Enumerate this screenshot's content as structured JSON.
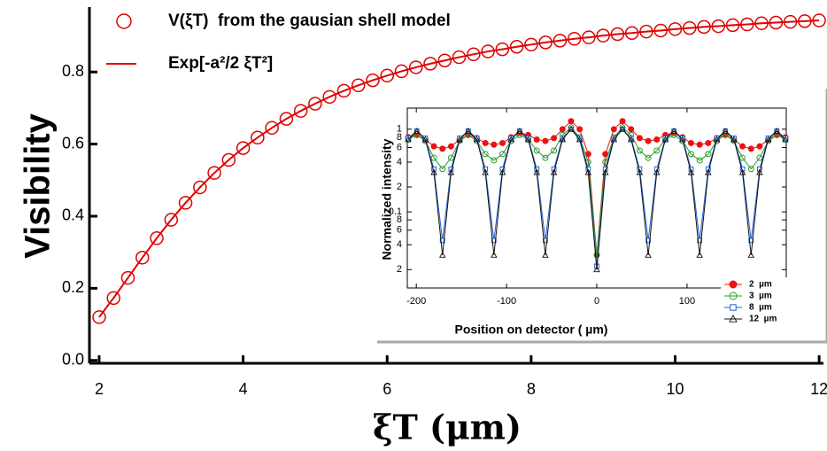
{
  "chart_data": [
    {
      "type": "line",
      "xlabel": "ξT (μm)",
      "ylabel": "Visibility",
      "x": [
        2,
        2.2,
        2.4,
        2.6,
        2.8,
        3,
        3.2,
        3.4,
        3.6,
        3.8,
        4,
        4.2,
        4.4,
        4.6,
        4.8,
        5,
        5.2,
        5.4,
        5.6,
        5.8,
        6,
        6.2,
        6.4,
        6.6,
        6.8,
        7,
        7.2,
        7.4,
        7.6,
        7.8,
        8,
        8.2,
        8.4,
        8.6,
        8.8,
        9,
        9.2,
        9.4,
        9.6,
        9.8,
        10,
        10.2,
        10.4,
        10.6,
        10.8,
        11,
        11.2,
        11.4,
        11.6,
        11.8,
        12
      ],
      "series": [
        {
          "name": "V(ξT)  from the gausian shell model",
          "color": "#e00000",
          "marker": "circle-open",
          "line": false,
          "values": [
            0.12,
            0.173,
            0.229,
            0.285,
            0.339,
            0.39,
            0.437,
            0.48,
            0.52,
            0.556,
            0.589,
            0.618,
            0.645,
            0.67,
            0.692,
            0.712,
            0.731,
            0.748,
            0.763,
            0.777,
            0.79,
            0.802,
            0.813,
            0.823,
            0.832,
            0.841,
            0.849,
            0.857,
            0.863,
            0.87,
            0.876,
            0.882,
            0.887,
            0.892,
            0.896,
            0.901,
            0.905,
            0.908,
            0.912,
            0.915,
            0.919,
            0.922,
            0.925,
            0.927,
            0.93,
            0.932,
            0.935,
            0.937,
            0.939,
            0.941,
            0.943
          ]
        },
        {
          "name": "Exp[-a²/2 ξT²]",
          "color": "#e00000",
          "marker": "none",
          "line": true,
          "values": [
            0.12,
            0.173,
            0.229,
            0.285,
            0.339,
            0.39,
            0.437,
            0.48,
            0.52,
            0.556,
            0.589,
            0.618,
            0.645,
            0.67,
            0.692,
            0.712,
            0.731,
            0.748,
            0.763,
            0.777,
            0.79,
            0.802,
            0.813,
            0.823,
            0.832,
            0.841,
            0.849,
            0.857,
            0.863,
            0.87,
            0.876,
            0.882,
            0.887,
            0.892,
            0.896,
            0.901,
            0.905,
            0.908,
            0.912,
            0.915,
            0.919,
            0.922,
            0.925,
            0.927,
            0.93,
            0.932,
            0.935,
            0.937,
            0.939,
            0.941,
            0.943
          ]
        }
      ],
      "xlim": [
        1.865,
        12.06
      ],
      "xticks": [
        2,
        4,
        6,
        8,
        10,
        12
      ],
      "ylim": [
        -0.008,
        0.98
      ],
      "yticks": [
        {
          "value": 0,
          "label": "0.0"
        },
        0.2,
        0.4,
        0.6,
        0.8
      ],
      "log_y": false,
      "legend": "top-left"
    },
    {
      "type": "line",
      "xlabel": "Position on detector ( µm)",
      "ylabel": "Normalized intensity",
      "x": [
        -209,
        -199.5,
        -190,
        -180.5,
        -171,
        -161.5,
        -152,
        -142.5,
        -133,
        -123.5,
        -114,
        -104.5,
        -95,
        -85.5,
        -76,
        -66.5,
        -57,
        -47.5,
        -38,
        -28.5,
        -19,
        -9.5,
        0,
        9.5,
        19,
        28.5,
        38,
        47.5,
        57,
        66.5,
        76,
        85.5,
        95,
        104.5,
        114,
        123.5,
        133,
        142.5,
        152,
        161.5,
        171,
        180.5,
        190,
        199.5,
        209
      ],
      "series": [
        {
          "name": "2  µm",
          "color": "#ee1111",
          "marker": "circle-filled",
          "line": true,
          "values": [
            0.8,
            0.85,
            0.75,
            0.62,
            0.58,
            0.62,
            0.75,
            0.85,
            0.78,
            0.68,
            0.65,
            0.68,
            0.8,
            0.9,
            0.85,
            0.75,
            0.72,
            0.78,
            1.0,
            1.25,
            1.0,
            0.5,
            0.03,
            0.5,
            1.0,
            1.25,
            1.0,
            0.78,
            0.72,
            0.75,
            0.85,
            0.9,
            0.8,
            0.68,
            0.65,
            0.68,
            0.78,
            0.85,
            0.75,
            0.62,
            0.58,
            0.62,
            0.75,
            0.85,
            0.8
          ]
        },
        {
          "name": "3  µm",
          "color": "#2a9a2a",
          "marker": "circle-open",
          "line": true,
          "values": [
            0.75,
            0.85,
            0.72,
            0.45,
            0.33,
            0.45,
            0.72,
            0.85,
            0.72,
            0.5,
            0.42,
            0.5,
            0.72,
            0.85,
            0.75,
            0.55,
            0.45,
            0.55,
            0.85,
            1.05,
            0.8,
            0.4,
            0.03,
            0.4,
            0.8,
            1.05,
            0.85,
            0.55,
            0.45,
            0.55,
            0.75,
            0.85,
            0.72,
            0.5,
            0.42,
            0.5,
            0.72,
            0.85,
            0.72,
            0.45,
            0.33,
            0.45,
            0.72,
            0.85,
            0.75
          ]
        },
        {
          "name": "8  µm",
          "color": "#2060d0",
          "marker": "square",
          "line": true,
          "values": [
            0.78,
            0.95,
            0.78,
            0.33,
            0.045,
            0.33,
            0.78,
            0.95,
            0.78,
            0.33,
            0.045,
            0.33,
            0.78,
            0.95,
            0.78,
            0.33,
            0.045,
            0.33,
            0.78,
            1.0,
            0.78,
            0.33,
            0.022,
            0.33,
            0.78,
            1.0,
            0.78,
            0.33,
            0.045,
            0.33,
            0.78,
            0.95,
            0.78,
            0.33,
            0.045,
            0.33,
            0.78,
            0.95,
            0.78,
            0.33,
            0.045,
            0.33,
            0.78,
            0.95,
            0.78
          ]
        },
        {
          "name": "12  µm",
          "color": "#111111",
          "marker": "triangle-open",
          "line": true,
          "values": [
            0.75,
            0.95,
            0.75,
            0.3,
            0.03,
            0.3,
            0.75,
            0.95,
            0.75,
            0.3,
            0.03,
            0.3,
            0.75,
            0.95,
            0.75,
            0.3,
            0.03,
            0.3,
            0.75,
            1.0,
            0.75,
            0.3,
            0.02,
            0.3,
            0.75,
            1.0,
            0.75,
            0.3,
            0.03,
            0.3,
            0.75,
            0.95,
            0.75,
            0.3,
            0.03,
            0.3,
            0.75,
            0.95,
            0.75,
            0.3,
            0.03,
            0.3,
            0.75,
            0.95,
            0.75
          ]
        }
      ],
      "xlim": [
        -210,
        210
      ],
      "xticks": [
        -200,
        -100,
        0,
        100
      ],
      "ylim": [
        0.012,
        1.8
      ],
      "yticks": [
        1,
        {
          "value": 0.8,
          "label": "8"
        },
        {
          "value": 0.6,
          "label": "6"
        },
        {
          "value": 0.4,
          "label": "4"
        },
        {
          "value": 0.2,
          "label": "2"
        },
        0.1,
        {
          "value": 0.08,
          "label": "8"
        },
        {
          "value": 0.06,
          "label": "6"
        },
        {
          "value": 0.04,
          "label": "4"
        },
        {
          "value": 0.02,
          "label": "2"
        }
      ],
      "log_y": true,
      "legend": "bottom-right"
    }
  ]
}
